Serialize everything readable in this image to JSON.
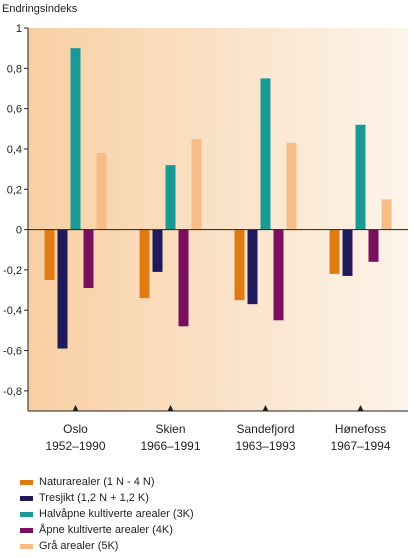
{
  "chart_data": {
    "type": "bar",
    "ylabel": "Endringsindeks",
    "ylim": [
      -0.9,
      1.0
    ],
    "yticks": [
      "1",
      "0,8",
      "0,6",
      "0,4",
      "0,2",
      "0",
      "-0,2",
      "-0,4",
      "-0,6",
      "-0,8"
    ],
    "ytick_values": [
      1,
      0.8,
      0.6,
      0.4,
      0.2,
      0,
      -0.2,
      -0.4,
      -0.6,
      -0.8
    ],
    "categories": [
      {
        "name": "Oslo",
        "period": "1952–1990"
      },
      {
        "name": "Skien",
        "period": "1966–1991"
      },
      {
        "name": "Sandefjord",
        "period": "1963–1993"
      },
      {
        "name": "Hønefoss",
        "period": "1967–1994"
      }
    ],
    "series": [
      {
        "name": "Naturarealer (1 N - 4 N)",
        "color": "#e07b14",
        "values": [
          -0.25,
          -0.34,
          -0.35,
          -0.22
        ]
      },
      {
        "name": "Tresjikt (1,2 N + 1,2 K)",
        "color": "#1f1a5c",
        "values": [
          -0.59,
          -0.21,
          -0.37,
          -0.23
        ]
      },
      {
        "name": "Halvåpne kultiverte arealer (3K)",
        "color": "#1a9a96",
        "values": [
          0.9,
          0.32,
          0.75,
          0.52
        ]
      },
      {
        "name": "Åpne kultiverte arealer (4K)",
        "color": "#7a0f5e",
        "values": [
          -0.29,
          -0.48,
          -0.45,
          -0.16
        ]
      },
      {
        "name": "Grå arealer (5K)",
        "color": "#f7bd87",
        "values": [
          0.38,
          0.45,
          0.43,
          0.15
        ]
      }
    ],
    "grid": false,
    "legend_position": "bottom-left"
  }
}
